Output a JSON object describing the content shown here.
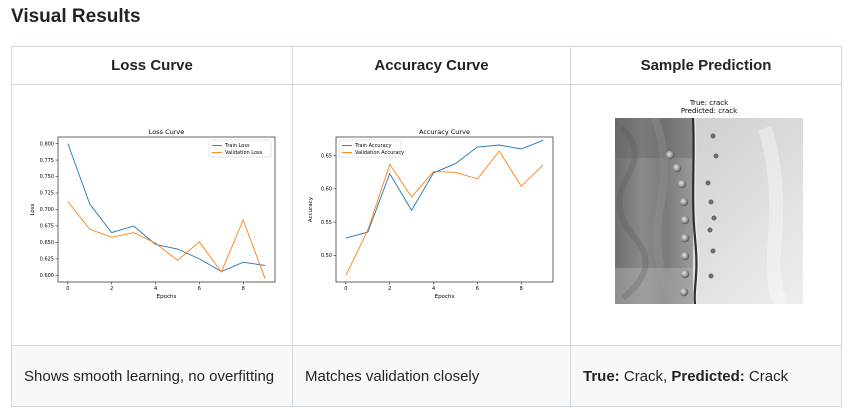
{
  "page_title": "Visual Results",
  "table": {
    "headers": [
      "Loss Curve",
      "Accuracy Curve",
      "Sample Prediction"
    ],
    "descriptions": {
      "loss": "Shows smooth learning, no overfitting",
      "accuracy": "Matches validation closely",
      "prediction_true_label": "True:",
      "prediction_true_value": "Crack,",
      "prediction_pred_label": "Predicted:",
      "prediction_pred_value": "Crack"
    }
  },
  "sample_prediction": {
    "true_text": "True: crack",
    "predicted_text": "Predicted: crack"
  },
  "chart_data": [
    {
      "type": "line",
      "title": "Loss Curve",
      "xlabel": "Epochs",
      "ylabel": "Loss",
      "x": [
        0,
        1,
        2,
        3,
        4,
        5,
        6,
        7,
        8,
        9
      ],
      "xticks": [
        "0",
        "2",
        "4",
        "6",
        "8"
      ],
      "yticks": [
        "0.600",
        "0.625",
        "0.650",
        "0.675",
        "0.700",
        "0.725",
        "0.750",
        "0.775",
        "0.800"
      ],
      "xlim": [
        -0.45,
        9.45
      ],
      "ylim": [
        0.59,
        0.81
      ],
      "legend_position": "upper-right",
      "series": [
        {
          "name": "Train Loss",
          "color": "#1f77b4",
          "values": [
            0.8,
            0.708,
            0.665,
            0.675,
            0.647,
            0.64,
            0.625,
            0.606,
            0.62,
            0.615
          ]
        },
        {
          "name": "Validation Loss",
          "color": "#ff7f0e",
          "values": [
            0.712,
            0.67,
            0.658,
            0.665,
            0.649,
            0.623,
            0.651,
            0.605,
            0.684,
            0.595
          ]
        }
      ]
    },
    {
      "type": "line",
      "title": "Accuracy Curve",
      "xlabel": "Epochs",
      "ylabel": "Accuracy",
      "x": [
        0,
        1,
        2,
        3,
        4,
        5,
        6,
        7,
        8,
        9
      ],
      "xticks": [
        "0",
        "2",
        "4",
        "6",
        "8"
      ],
      "yticks": [
        "0.50",
        "0.55",
        "0.60",
        "0.65"
      ],
      "xlim": [
        -0.45,
        9.45
      ],
      "ylim": [
        0.46,
        0.678
      ],
      "legend_position": "upper-left",
      "series": [
        {
          "name": "Train Accuracy",
          "color": "#1f77b4",
          "values": [
            0.526,
            0.535,
            0.623,
            0.568,
            0.624,
            0.638,
            0.663,
            0.666,
            0.66,
            0.673
          ]
        },
        {
          "name": "Validation Accuracy",
          "color": "#ff7f0e",
          "values": [
            0.47,
            0.538,
            0.637,
            0.588,
            0.626,
            0.625,
            0.615,
            0.657,
            0.604,
            0.636
          ]
        }
      ]
    }
  ]
}
